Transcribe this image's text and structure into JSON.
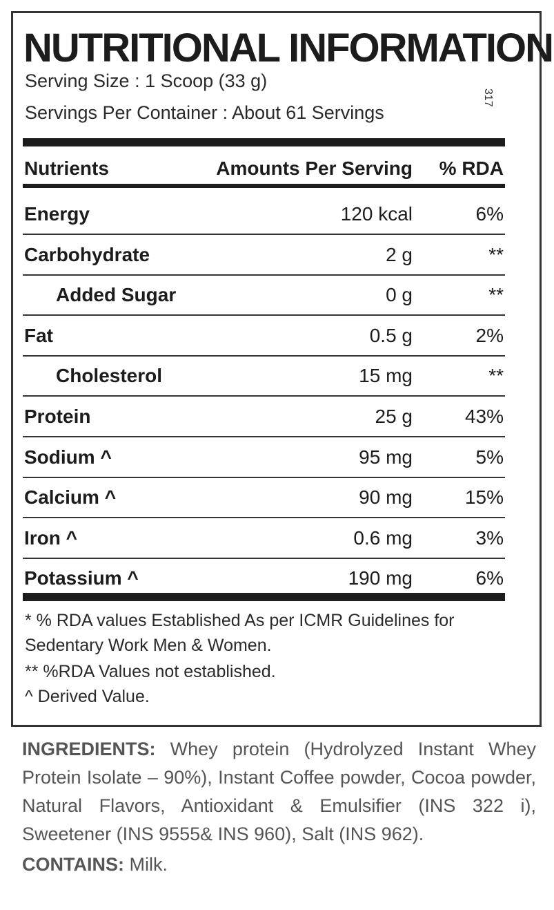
{
  "title": "NUTRITIONAL INFORMATION",
  "side_code": "317",
  "serving_size": "Serving Size : 1 Scoop (33 g)",
  "servings_per_container": "Servings Per Container : About 61 Servings",
  "table": {
    "headers": [
      "Nutrients",
      "Amounts Per Serving",
      "% RDA"
    ],
    "rows": [
      {
        "nutrient": "Energy",
        "amount": "120 kcal",
        "rda": "6%",
        "indent": false
      },
      {
        "nutrient": "Carbohydrate",
        "amount": "2 g",
        "rda": "**",
        "indent": false
      },
      {
        "nutrient": "Added Sugar",
        "amount": "0 g",
        "rda": "**",
        "indent": true
      },
      {
        "nutrient": "Fat",
        "amount": "0.5 g",
        "rda": "2%",
        "indent": false
      },
      {
        "nutrient": "Cholesterol",
        "amount": "15 mg",
        "rda": "**",
        "indent": true
      },
      {
        "nutrient": "Protein",
        "amount": "25 g",
        "rda": "43%",
        "indent": false
      },
      {
        "nutrient": "Sodium ^",
        "amount": "95 mg",
        "rda": "5%",
        "indent": false
      },
      {
        "nutrient": "Calcium ^",
        "amount": "90 mg",
        "rda": "15%",
        "indent": false
      },
      {
        "nutrient": "Iron ^",
        "amount": "0.6 mg",
        "rda": "3%",
        "indent": false
      },
      {
        "nutrient": "Potassium ^",
        "amount": "190 mg",
        "rda": "6%",
        "indent": false
      }
    ]
  },
  "notes": [
    "* % RDA values Established As per ICMR Guidelines for",
    "Sedentary Work Men & Women.",
    "** %RDA Values not established.",
    "^ Derived Value."
  ],
  "ingredients": {
    "label": "INGREDIENTS:",
    "text": "Whey protein (Hydrolyzed Instant Whey Protein Isolate – 90%), Instant Coffee powder, Cocoa powder, Natural Flavors, Antioxidant & Emulsifier (INS 322 i), Sweetener (INS 9555& INS 960), Salt (INS 962)."
  },
  "contains": {
    "label": "CONTAINS:",
    "text": "Milk."
  }
}
